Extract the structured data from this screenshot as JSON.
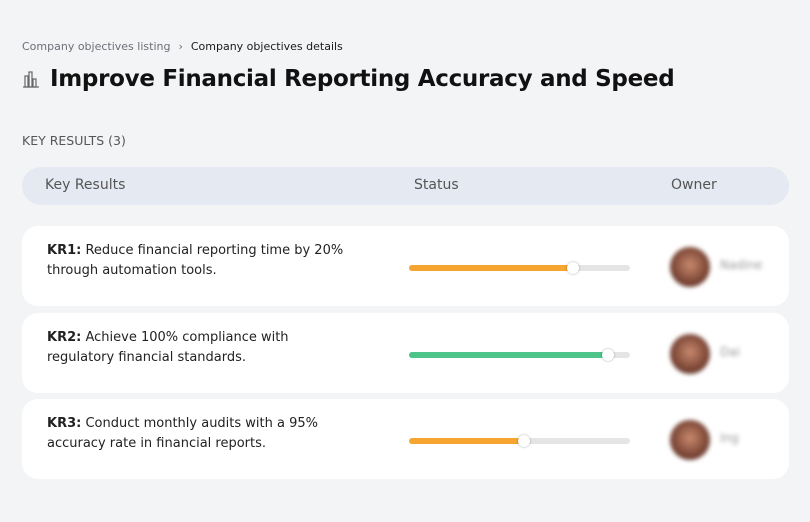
{
  "breadcrumb": {
    "parent": "Company objectives listing",
    "separator": "›",
    "current": "Company objectives details"
  },
  "page": {
    "title": "Improve Financial Reporting Accuracy and Speed",
    "icon": "bar-chart-icon"
  },
  "section_label": "KEY RESULTS (3)",
  "table": {
    "headers": {
      "key_results": "Key Results",
      "status": "Status",
      "owner": "Owner"
    },
    "rows": [
      {
        "id": "KR1:",
        "text": " Reduce financial reporting time by 20% through automation tools.",
        "progress": 74,
        "color": "#f6a530",
        "owner": "Nadine"
      },
      {
        "id": "KR2:",
        "text": " Achieve 100% compliance with regulatory financial standards.",
        "progress": 90,
        "color": "#4cc48a",
        "owner": "Dai"
      },
      {
        "id": "KR3:",
        "text": " Conduct monthly audits with a 95% accuracy rate in financial reports.",
        "progress": 52,
        "color": "#f6a530",
        "owner": "Ing"
      }
    ]
  }
}
